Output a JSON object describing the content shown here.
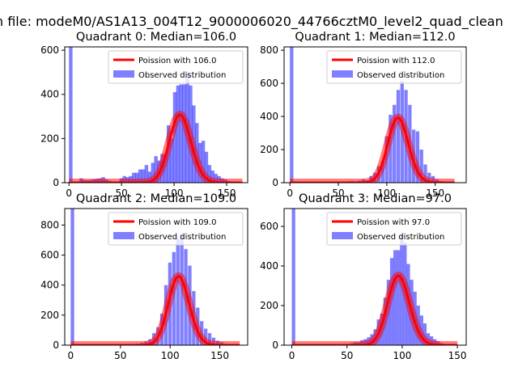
{
  "figure": {
    "suptitle": "n file: modeM0/AS1A13_004T12_9000006020_44766cztM0_level2_quad_clean",
    "colors": {
      "observed": "#0000ff",
      "observed_alpha": 0.5,
      "poisson": "#ff0000",
      "poisson_alpha": 0.5
    }
  },
  "chart_data": [
    {
      "type": "bar",
      "title": "Quadrant 0: Median=106.0",
      "xlim": [
        -4,
        170
      ],
      "ylim": [
        0,
        615
      ],
      "xticks": [
        0,
        50,
        100,
        150
      ],
      "yticks": [
        0,
        200,
        400,
        600
      ],
      "legend": [
        "Poission with 106.0",
        "Observed distribution"
      ],
      "legend_placement": "upper right",
      "grid": false,
      "histogram": {
        "bin_width": 3.4,
        "bins": [
          [
            0,
            615
          ],
          [
            10,
            20
          ],
          [
            13,
            12
          ],
          [
            16,
            10
          ],
          [
            19,
            12
          ],
          [
            22,
            15
          ],
          [
            25,
            18
          ],
          [
            28,
            20
          ],
          [
            31,
            25
          ],
          [
            34,
            15
          ],
          [
            37,
            8
          ],
          [
            40,
            4
          ],
          [
            48,
            20
          ],
          [
            51,
            30
          ],
          [
            54,
            25
          ],
          [
            57,
            30
          ],
          [
            60,
            45
          ],
          [
            63,
            45
          ],
          [
            66,
            60
          ],
          [
            69,
            60
          ],
          [
            72,
            80
          ],
          [
            75,
            50
          ],
          [
            78,
            90
          ],
          [
            81,
            120
          ],
          [
            84,
            100
          ],
          [
            87,
            130
          ],
          [
            90,
            130
          ],
          [
            93,
            260
          ],
          [
            96,
            200
          ],
          [
            99,
            410
          ],
          [
            102,
            440
          ],
          [
            105,
            445
          ],
          [
            108,
            445
          ],
          [
            111,
            500
          ],
          [
            114,
            440
          ],
          [
            117,
            350
          ],
          [
            120,
            270
          ],
          [
            123,
            180
          ],
          [
            126,
            190
          ],
          [
            129,
            140
          ],
          [
            132,
            80
          ],
          [
            135,
            55
          ],
          [
            138,
            40
          ],
          [
            141,
            30
          ],
          [
            144,
            20
          ],
          [
            147,
            15
          ],
          [
            150,
            8
          ]
        ]
      },
      "poisson": {
        "name": "Poission with 106.0",
        "lambda": 106.0,
        "scale": 7933,
        "x_range": [
          0,
          165
        ]
      }
    },
    {
      "type": "bar",
      "title": "Quadrant 1: Median=112.0",
      "xlim": [
        -6,
        182
      ],
      "ylim": [
        0,
        820
      ],
      "xticks": [
        0,
        50,
        100,
        150
      ],
      "yticks": [
        0,
        200,
        400,
        600,
        800
      ],
      "legend": [
        "Poission with 112.0",
        "Observed distribution"
      ],
      "legend_placement": "upper right",
      "grid": false,
      "histogram": {
        "bin_width": 3.6,
        "bins": [
          [
            0,
            820
          ],
          [
            50,
            5
          ],
          [
            54,
            5
          ],
          [
            58,
            8
          ],
          [
            62,
            10
          ],
          [
            66,
            8
          ],
          [
            70,
            12
          ],
          [
            74,
            20
          ],
          [
            78,
            15
          ],
          [
            82,
            40
          ],
          [
            86,
            60
          ],
          [
            90,
            100
          ],
          [
            94,
            130
          ],
          [
            98,
            280
          ],
          [
            102,
            410
          ],
          [
            106,
            470
          ],
          [
            110,
            560
          ],
          [
            114,
            615
          ],
          [
            118,
            560
          ],
          [
            122,
            470
          ],
          [
            126,
            320
          ],
          [
            130,
            310
          ],
          [
            134,
            200
          ],
          [
            138,
            110
          ],
          [
            142,
            60
          ],
          [
            146,
            40
          ],
          [
            150,
            20
          ],
          [
            154,
            10
          ],
          [
            158,
            5
          ],
          [
            162,
            3
          ]
        ]
      },
      "poisson": {
        "name": "Poission with 112.0",
        "lambda": 112.0,
        "scale": 10400,
        "x_range": [
          0,
          170
        ]
      }
    },
    {
      "type": "bar",
      "title": "Quadrant 2: Median=109.0",
      "xlim": [
        -6,
        178
      ],
      "ylim": [
        0,
        910
      ],
      "xticks": [
        0,
        50,
        100,
        150
      ],
      "yticks": [
        0,
        200,
        400,
        600,
        800
      ],
      "legend": [
        "Poission with 109.0",
        "Observed distribution"
      ],
      "legend_placement": "upper right",
      "grid": false,
      "histogram": {
        "bin_width": 3.5,
        "bins": [
          [
            0,
            910
          ],
          [
            20,
            5
          ],
          [
            40,
            5
          ],
          [
            55,
            5
          ],
          [
            60,
            8
          ],
          [
            65,
            10
          ],
          [
            70,
            15
          ],
          [
            74,
            25
          ],
          [
            78,
            40
          ],
          [
            82,
            80
          ],
          [
            86,
            120
          ],
          [
            90,
            210
          ],
          [
            94,
            400
          ],
          [
            98,
            550
          ],
          [
            102,
            620
          ],
          [
            106,
            710
          ],
          [
            110,
            740
          ],
          [
            114,
            640
          ],
          [
            118,
            530
          ],
          [
            122,
            360
          ],
          [
            126,
            250
          ],
          [
            130,
            160
          ],
          [
            134,
            110
          ],
          [
            138,
            80
          ],
          [
            142,
            50
          ],
          [
            146,
            30
          ],
          [
            150,
            20
          ],
          [
            154,
            10
          ],
          [
            158,
            5
          ]
        ]
      },
      "poisson": {
        "name": "Poission with 109.0",
        "lambda": 109.0,
        "scale": 12000,
        "x_range": [
          0,
          170
        ]
      }
    },
    {
      "type": "bar",
      "title": "Quadrant 3: Median=97.0",
      "xlim": [
        -7,
        158
      ],
      "ylim": [
        0,
        690
      ],
      "xticks": [
        0,
        50,
        100,
        150
      ],
      "yticks": [
        0,
        200,
        400,
        600
      ],
      "legend": [
        "Poission with 97.0",
        "Observed distribution"
      ],
      "legend_placement": "upper right",
      "grid": false,
      "histogram": {
        "bin_width": 3.1,
        "bins": [
          [
            0,
            690
          ],
          [
            50,
            5
          ],
          [
            53,
            10
          ],
          [
            56,
            15
          ],
          [
            59,
            15
          ],
          [
            62,
            25
          ],
          [
            65,
            30
          ],
          [
            68,
            40
          ],
          [
            71,
            55
          ],
          [
            74,
            80
          ],
          [
            77,
            130
          ],
          [
            80,
            160
          ],
          [
            83,
            240
          ],
          [
            86,
            330
          ],
          [
            89,
            440
          ],
          [
            92,
            480
          ],
          [
            95,
            480
          ],
          [
            98,
            560
          ],
          [
            101,
            520
          ],
          [
            104,
            410
          ],
          [
            107,
            330
          ],
          [
            110,
            270
          ],
          [
            113,
            200
          ],
          [
            116,
            150
          ],
          [
            119,
            110
          ],
          [
            122,
            60
          ],
          [
            125,
            45
          ],
          [
            128,
            30
          ],
          [
            131,
            20
          ],
          [
            134,
            10
          ],
          [
            137,
            5
          ]
        ]
      },
      "poisson": {
        "name": "Poission with 97.0",
        "lambda": 97.0,
        "scale": 8650,
        "x_range": [
          0,
          150
        ]
      }
    }
  ]
}
